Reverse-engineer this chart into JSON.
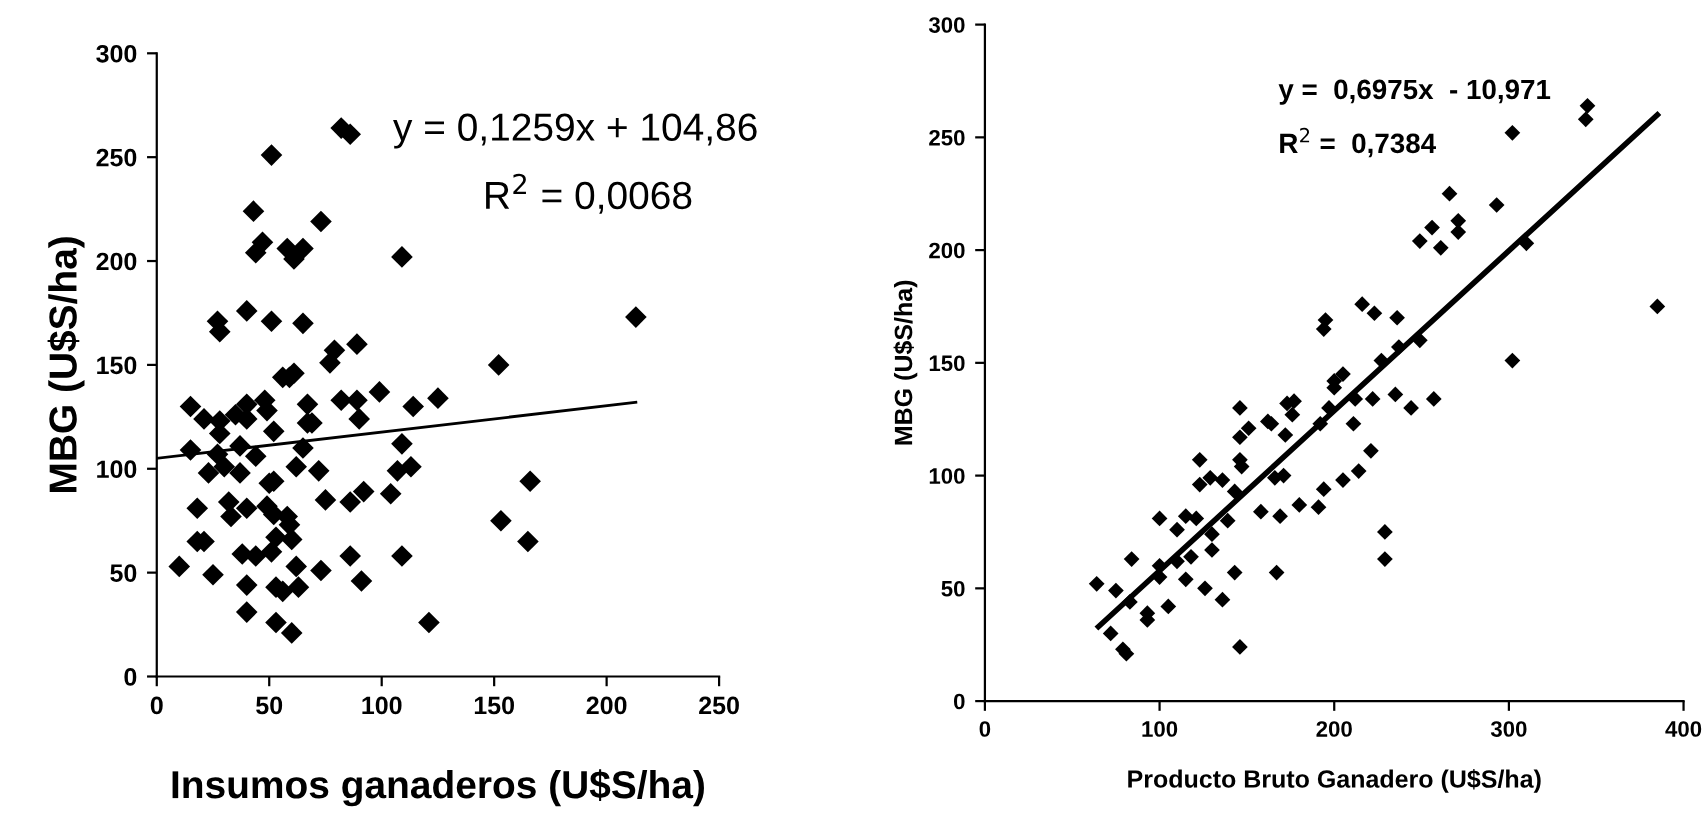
{
  "chart_data": [
    {
      "type": "scatter",
      "xlabel": "Insumos ganaderos (U$S/ha)",
      "ylabel": "MBG (U$S/ha)",
      "annotations": [
        "y = 0,1259x + 104,86",
        "R$^{2}$ = 0,0068"
      ],
      "xlim": [
        0,
        250
      ],
      "ylim": [
        0,
        300
      ],
      "xticks": [
        0,
        50,
        100,
        150,
        200,
        250
      ],
      "yticks": [
        0,
        50,
        100,
        150,
        200,
        250,
        300
      ],
      "series": [
        {
          "marker": "diamond",
          "color": "#000000",
          "x": [
            10,
            15,
            15,
            18,
            18,
            21,
            25,
            21,
            23,
            27,
            27,
            28,
            28,
            28,
            30,
            32,
            33,
            35,
            37,
            37,
            40,
            40,
            40,
            38,
            40,
            40,
            40,
            43,
            44,
            47,
            44,
            44,
            48,
            49,
            51,
            51,
            52,
            50,
            52,
            49,
            52,
            51,
            53,
            53,
            53,
            56,
            56,
            58,
            59,
            61,
            58,
            59,
            60,
            62,
            60,
            61,
            62,
            63,
            65,
            65,
            65,
            67,
            67,
            69,
            72,
            73,
            73,
            75,
            77,
            79,
            82,
            82,
            86,
            86,
            86,
            89,
            89,
            90,
            91,
            92,
            99,
            104,
            107,
            109,
            109,
            109,
            113,
            114,
            121,
            125,
            152,
            153,
            166,
            165,
            213
          ],
          "values": [
            53,
            130,
            109,
            81,
            65,
            65,
            49,
            124,
            98,
            107,
            171,
            166,
            123,
            117,
            101,
            84,
            77,
            126,
            111,
            98,
            131,
            124,
            81,
            59,
            44,
            31,
            176,
            224,
            204,
            209,
            106,
            58,
            133,
            128,
            251,
            171,
            118,
            93,
            94,
            82,
            78,
            60,
            67,
            43,
            26,
            41,
            144,
            206,
            144,
            146,
            77,
            73,
            66,
            53,
            21,
            201,
            101,
            43,
            206,
            170,
            110,
            131,
            122,
            122,
            99,
            219,
            51,
            85,
            151,
            157,
            133,
            264,
            84,
            58,
            261,
            133,
            160,
            124,
            46,
            89,
            137,
            88,
            99,
            112,
            202,
            58,
            101,
            130,
            26,
            134,
            150,
            75,
            94,
            65,
            173
          ]
        },
        {
          "type": "line",
          "marker": "none",
          "color": "#000000",
          "x": [
            0,
            213
          ],
          "values": [
            105,
            132
          ]
        }
      ]
    },
    {
      "type": "scatter",
      "xlabel": "Producto Bruto Ganadero (U$S/ha)",
      "ylabel": "MBG (U$S/ha)",
      "annotations": [
        "y =  0,6975x  - 10,971",
        "R$^{2}$ =  0,7384"
      ],
      "xlim": [
        0,
        400
      ],
      "ylim": [
        0,
        300
      ],
      "xticks": [
        0,
        100,
        200,
        300,
        400
      ],
      "yticks": [
        0,
        50,
        100,
        150,
        200,
        250,
        300
      ],
      "series": [
        {
          "marker": "diamond",
          "color": "#000000",
          "x": [
            64,
            72,
            75,
            79,
            81,
            83,
            84,
            93,
            93,
            100,
            100,
            100,
            105,
            110,
            110,
            115,
            115,
            118,
            121,
            123,
            123,
            126,
            129,
            130,
            130,
            136,
            136,
            139,
            143,
            143,
            146,
            146,
            146,
            147,
            146,
            151,
            158,
            162,
            164,
            166,
            167,
            169,
            171,
            172,
            173,
            176,
            177,
            180,
            191,
            192,
            194,
            195,
            194,
            197,
            200,
            200,
            205,
            205,
            211,
            212,
            214,
            216,
            221,
            222,
            223,
            227,
            229,
            229,
            236,
            235,
            237,
            244,
            249,
            249,
            256,
            257,
            261,
            266,
            271,
            271,
            293,
            302,
            302,
            310,
            344,
            345,
            385
          ],
          "values": [
            52,
            30,
            49,
            23,
            21,
            44,
            63,
            39,
            36,
            81,
            60,
            55,
            42,
            76,
            62,
            82,
            54,
            64,
            81,
            96,
            107,
            50,
            99,
            67,
            74,
            98,
            45,
            80,
            93,
            57,
            130,
            117,
            107,
            104,
            24,
            121,
            84,
            124,
            123,
            99,
            57,
            82,
            100,
            118,
            132,
            127,
            133,
            87,
            86,
            123,
            165,
            169,
            94,
            130,
            139,
            142,
            145,
            98,
            123,
            134,
            102,
            176,
            111,
            134,
            172,
            151,
            75,
            63,
            170,
            136,
            157,
            130,
            204,
            160,
            210,
            134,
            201,
            225,
            213,
            208,
            220,
            252,
            151,
            203,
            258,
            264,
            175
          ]
        },
        {
          "type": "line",
          "marker": "none",
          "color": "#000000",
          "x": [
            65,
            385
          ],
          "values": [
            33,
            260
          ]
        }
      ]
    }
  ]
}
